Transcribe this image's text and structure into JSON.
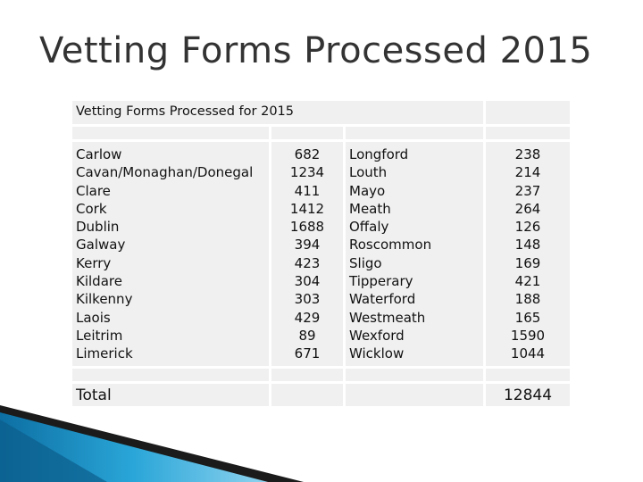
{
  "slide_title": "Vetting Forms Processed 2015",
  "table": {
    "caption": "Vetting Forms Processed for 2015",
    "left_counties": [
      "Carlow",
      "Cavan/Monaghan/Donegal",
      "Clare",
      "Cork",
      "Dublin",
      "Galway",
      "Kerry",
      "Kildare",
      "Kilkenny",
      "Laois",
      "Leitrim",
      "Limerick"
    ],
    "left_values": [
      "682",
      "1234",
      "411",
      "1412",
      "1688",
      "394",
      "423",
      "304",
      "303",
      "429",
      "89",
      "671"
    ],
    "right_counties": [
      "Longford",
      "Louth",
      "Mayo",
      "Meath",
      "Offaly",
      "Roscommon",
      "Sligo",
      "Tipperary",
      "Waterford",
      "Westmeath",
      "Wexford",
      "Wicklow"
    ],
    "right_values": [
      "238",
      "214",
      "237",
      "264",
      "126",
      "148",
      "169",
      "421",
      "188",
      "165",
      "1590",
      "1044"
    ],
    "total_label": "Total",
    "total_value": "12844"
  },
  "colors": {
    "cell_bg": "#f0f0f0",
    "title": "#333333",
    "accent_blue": "#1a8fc4"
  }
}
